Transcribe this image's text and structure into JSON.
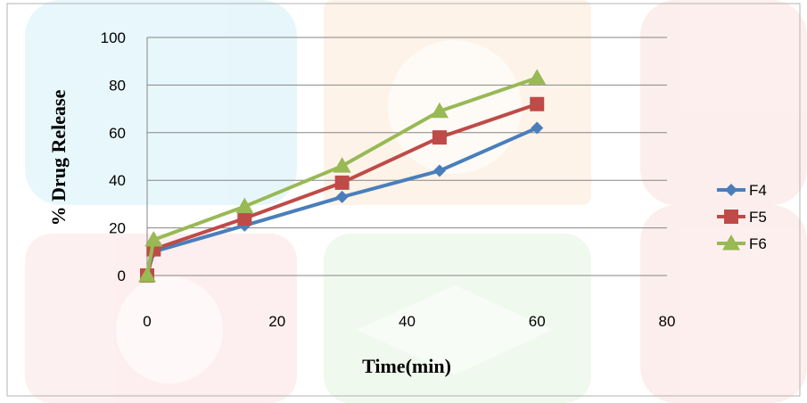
{
  "chart_data": {
    "type": "line",
    "xlabel": "Time(min)",
    "ylabel": "% Drug Release",
    "xlim": [
      0,
      80
    ],
    "ylim": [
      0,
      100
    ],
    "xticks": [
      0,
      20,
      40,
      60,
      80
    ],
    "yticks": [
      0,
      20,
      40,
      60,
      80,
      100
    ],
    "grid": "horizontal",
    "legend_position": "right",
    "series": [
      {
        "name": "F4",
        "color": "#4a7ebb",
        "marker": "diamond",
        "x": [
          0,
          1,
          15,
          30,
          45,
          60
        ],
        "y": [
          0,
          10,
          21,
          33,
          44,
          62
        ]
      },
      {
        "name": "F5",
        "color": "#be4b48",
        "marker": "square",
        "x": [
          0,
          1,
          15,
          30,
          45,
          60
        ],
        "y": [
          0,
          11,
          24,
          39,
          58,
          72
        ]
      },
      {
        "name": "F6",
        "color": "#98b954",
        "marker": "triangle",
        "x": [
          0,
          1,
          15,
          30,
          45,
          60
        ],
        "y": [
          0,
          15,
          29,
          46,
          69,
          83
        ]
      }
    ]
  }
}
